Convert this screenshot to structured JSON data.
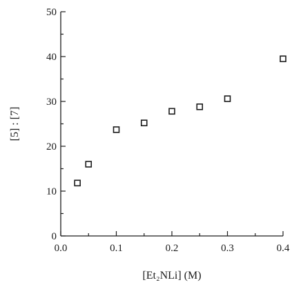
{
  "chart_data": {
    "type": "scatter",
    "title": "",
    "xlabel": "[Et₂NLi] (M)",
    "ylabel": "[5] : [7]",
    "xlim": [
      0.0,
      0.4
    ],
    "ylim": [
      0,
      50
    ],
    "x_ticks": [
      "0.0",
      "0.1",
      "0.2",
      "0.3",
      "0.4"
    ],
    "y_ticks": [
      "0",
      "10",
      "20",
      "30",
      "40",
      "50"
    ],
    "grid": false,
    "marker": "open-square",
    "colors": {
      "axis": "#1a1a1a",
      "marker": "#1a1a1a"
    },
    "series": [
      {
        "x": [
          0.03,
          0.05,
          0.1,
          0.15,
          0.2,
          0.25,
          0.3,
          0.4
        ],
        "y": [
          11.8,
          16.0,
          23.7,
          25.2,
          27.8,
          28.8,
          30.6,
          39.5
        ]
      }
    ]
  }
}
